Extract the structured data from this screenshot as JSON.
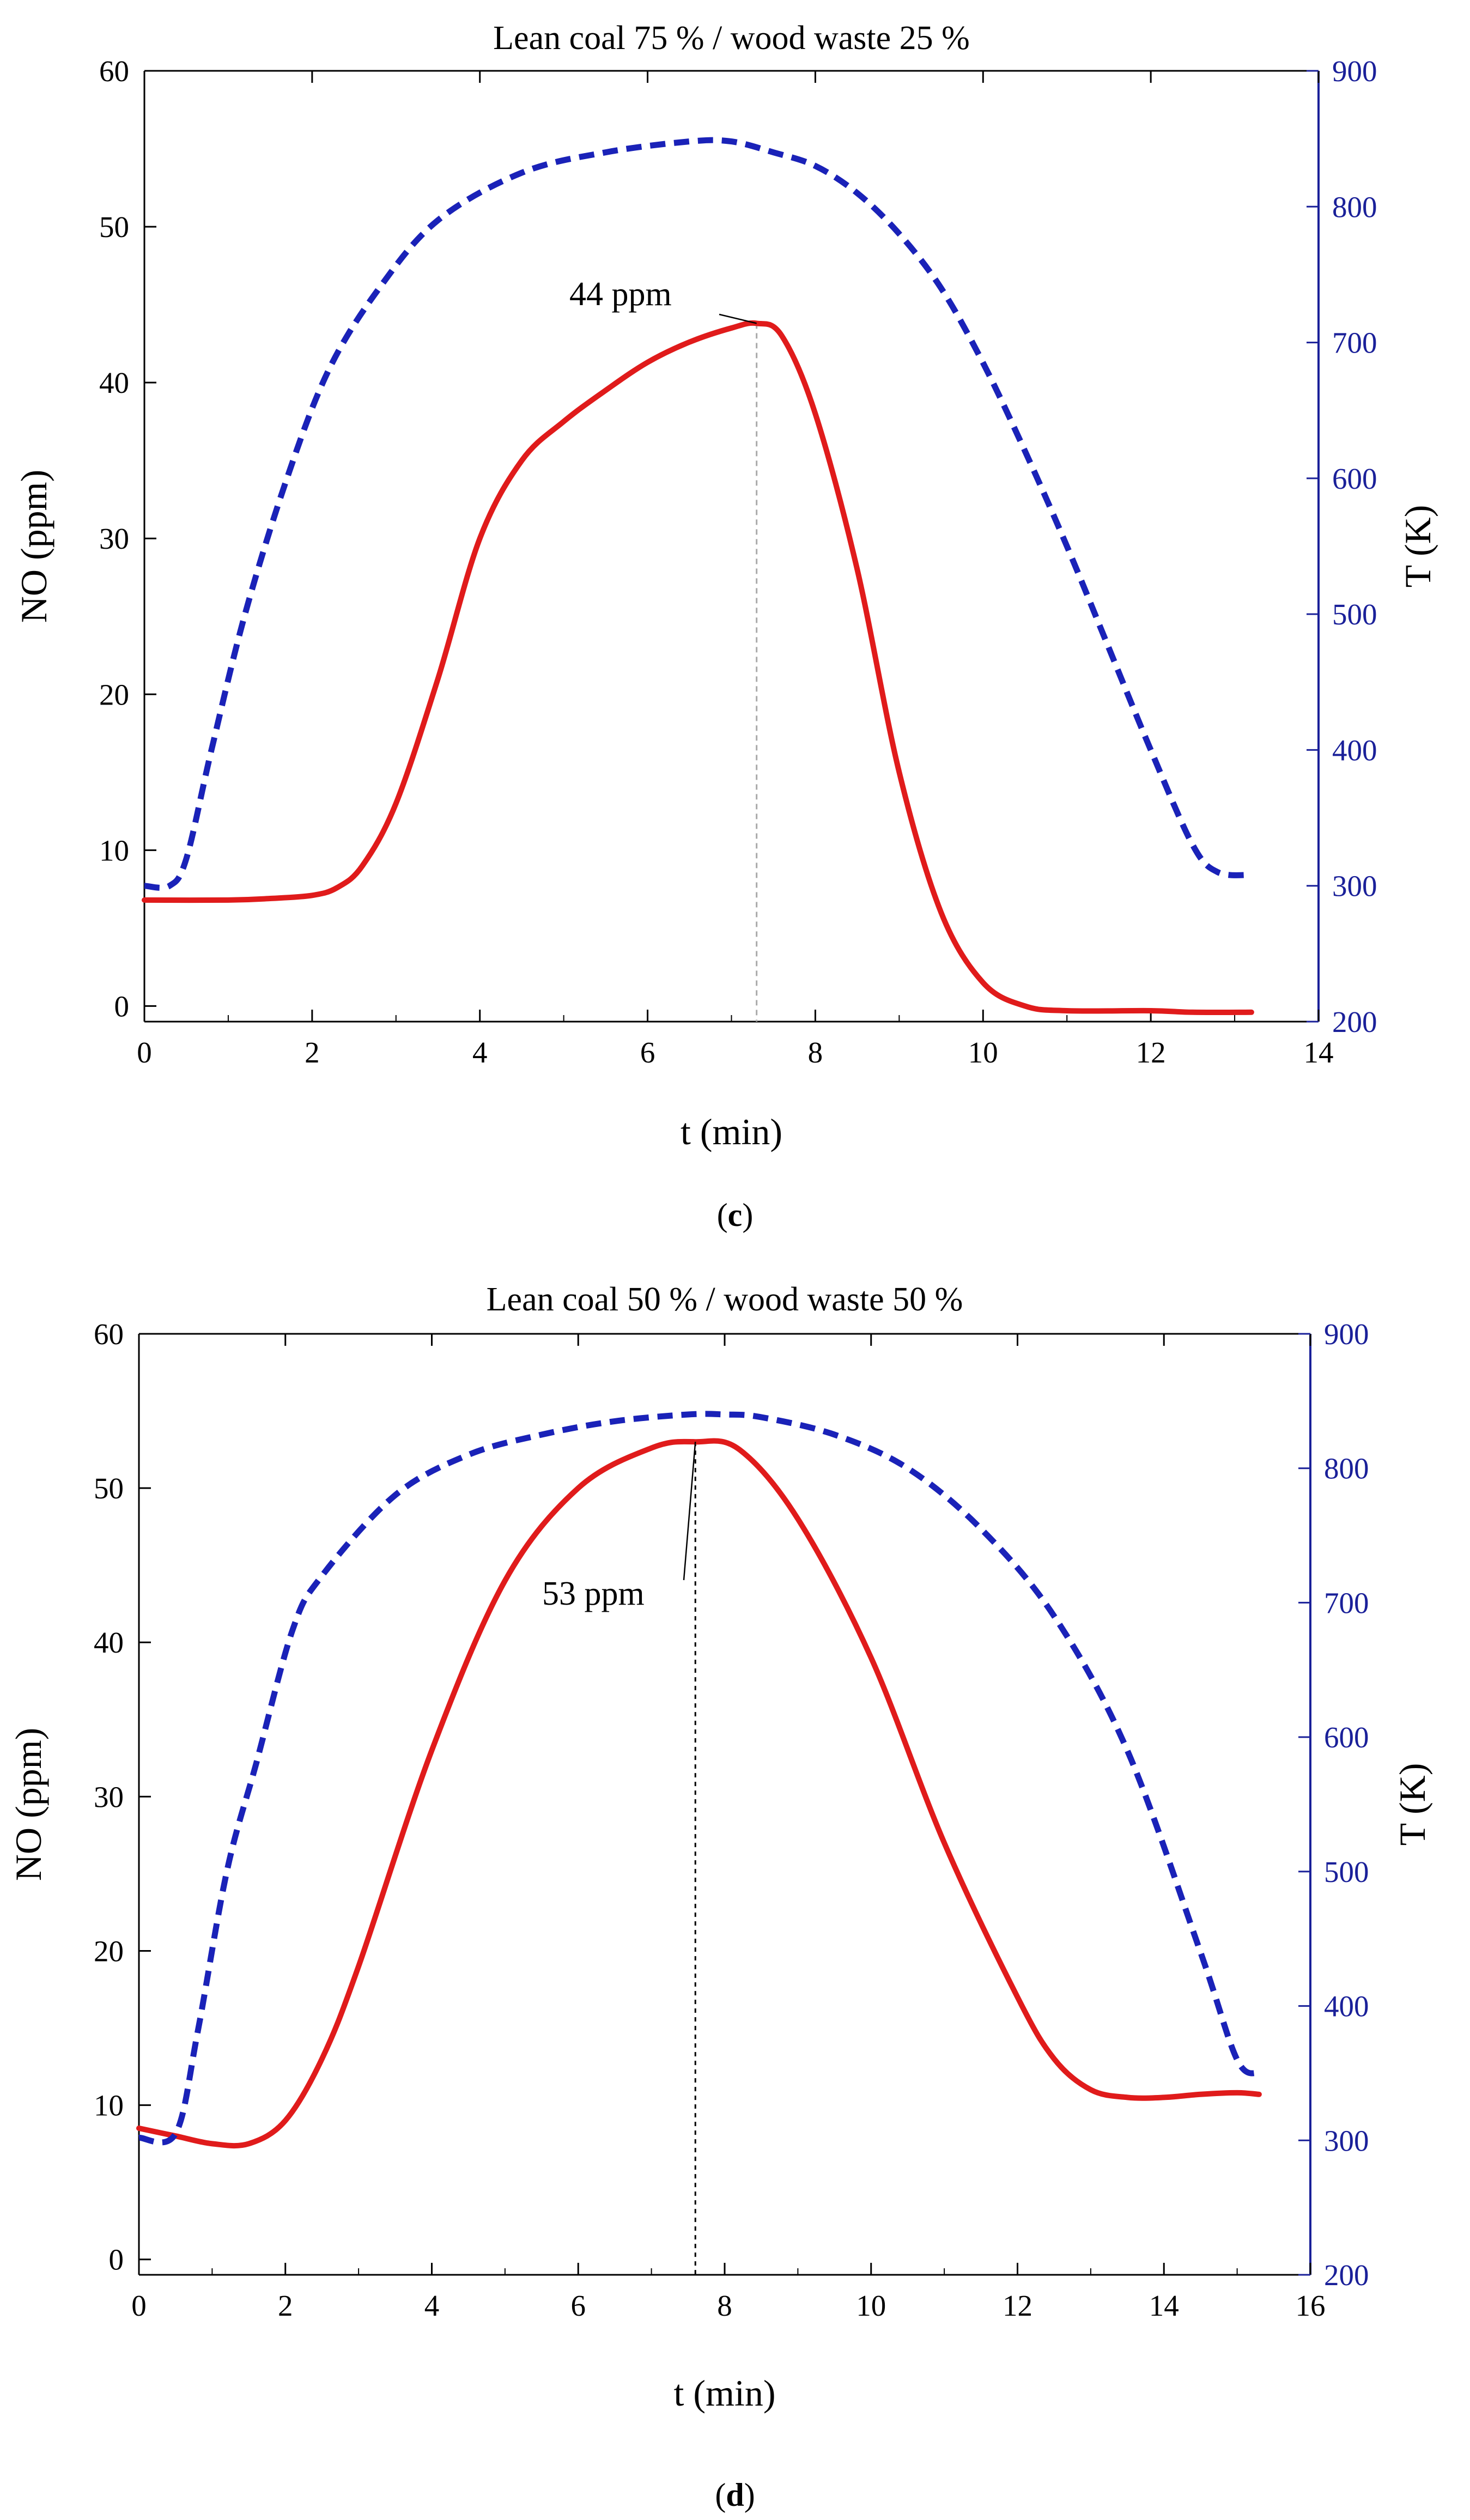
{
  "colors": {
    "no_line": "#e01b1b",
    "t_line": "#1a22b8",
    "t_axis": "#1a2099",
    "axis": "#000000"
  },
  "chart_data": [
    {
      "type": "line",
      "panel_label": "c",
      "title": "Lean coal 75 % / wood waste 25 %",
      "xlabel": "t (min)",
      "ylabel": "NO (ppm)",
      "y2label": "T (K)",
      "xlim": [
        0,
        14
      ],
      "ylim": [
        -1,
        60
      ],
      "y2lim": [
        200,
        900
      ],
      "xticks": [
        "0",
        "2",
        "4",
        "6",
        "8",
        "10",
        "12",
        "14"
      ],
      "yticks": [
        "0",
        "10",
        "20",
        "30",
        "40",
        "50",
        "60"
      ],
      "y2ticks": [
        "200",
        "300",
        "400",
        "500",
        "600",
        "700",
        "800",
        "900"
      ],
      "annotation": {
        "text": "44 ppm",
        "x": 7.3,
        "y": 43.8
      },
      "series": [
        {
          "name": "NO",
          "axis": "left",
          "style": "solid",
          "x": [
            0,
            1,
            1.5,
            2,
            2.3,
            2.6,
            3,
            3.5,
            4,
            4.5,
            5,
            5.5,
            6,
            6.5,
            7,
            7.3,
            7.6,
            8,
            8.5,
            9,
            9.5,
            10,
            10.5,
            11,
            12,
            12.5,
            13.2
          ],
          "values": [
            6.8,
            6.8,
            6.9,
            7.1,
            7.6,
            9,
            13,
            21,
            30,
            35,
            37.5,
            39.5,
            41.3,
            42.6,
            43.5,
            43.8,
            43,
            38,
            28,
            15,
            6,
            1.5,
            0,
            -0.3,
            -0.3,
            -0.4,
            -0.4
          ]
        },
        {
          "name": "T",
          "axis": "right",
          "style": "dashed",
          "x": [
            0,
            0.3,
            0.5,
            0.8,
            1.2,
            1.7,
            2.2,
            2.8,
            3.5,
            4.5,
            5.5,
            6.5,
            7,
            7.5,
            8,
            8.5,
            9,
            9.5,
            10,
            10.5,
            11,
            11.5,
            12,
            12.5,
            12.8,
            13.2
          ],
          "values": [
            300,
            300,
            320,
            400,
            500,
            600,
            680,
            740,
            790,
            825,
            840,
            848,
            848,
            840,
            830,
            810,
            780,
            740,
            685,
            620,
            550,
            475,
            400,
            330,
            310,
            308
          ]
        }
      ]
    },
    {
      "type": "line",
      "panel_label": "d",
      "title": "Lean coal 50 % / wood waste 50 %",
      "xlabel": "t (min)",
      "ylabel": "NO (ppm)",
      "y2label": "T (K)",
      "xlim": [
        0,
        16
      ],
      "ylim": [
        -1,
        60
      ],
      "y2lim": [
        200,
        900
      ],
      "xticks": [
        "0",
        "2",
        "4",
        "6",
        "8",
        "10",
        "12",
        "14",
        "16"
      ],
      "yticks": [
        "0",
        "10",
        "20",
        "30",
        "40",
        "50",
        "60"
      ],
      "y2ticks": [
        "200",
        "300",
        "400",
        "500",
        "600",
        "700",
        "800",
        "900"
      ],
      "annotation": {
        "text": "53 ppm",
        "x": 7.6,
        "y": 53
      },
      "series": [
        {
          "name": "NO",
          "axis": "left",
          "style": "solid",
          "x": [
            0,
            0.5,
            1,
            1.5,
            2,
            2.5,
            3,
            4,
            5,
            6,
            7,
            7.6,
            8.2,
            9,
            10,
            11,
            12,
            12.5,
            13,
            13.5,
            14,
            14.5,
            15,
            15.3
          ],
          "values": [
            8.5,
            8,
            7.5,
            7.5,
            9,
            13,
            19,
            33,
            44,
            50,
            52.6,
            53,
            52.5,
            48,
            39,
            27,
            17,
            13,
            11,
            10.5,
            10.5,
            10.7,
            10.8,
            10.7
          ]
        },
        {
          "name": "T",
          "axis": "right",
          "style": "dashed",
          "x": [
            0,
            0.5,
            0.8,
            1.2,
            1.6,
            2.1,
            2.5,
            3.5,
            4.5,
            5.5,
            6.5,
            7.5,
            8,
            8.5,
            9.5,
            10.5,
            11.5,
            12.5,
            13.5,
            14.5,
            15,
            15.3
          ],
          "values": [
            302,
            305,
            380,
            500,
            580,
            680,
            720,
            780,
            810,
            825,
            835,
            840,
            840,
            838,
            825,
            800,
            755,
            690,
            590,
            440,
            360,
            350
          ]
        }
      ]
    }
  ]
}
